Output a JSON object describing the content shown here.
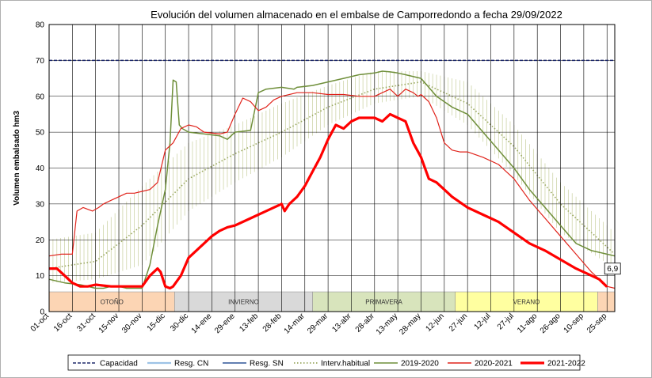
{
  "chart_data": {
    "type": "line",
    "title": "Evolución del volumen almacenado en el embalse de Camporredondo a fecha 29/09/2022",
    "xlabel": "",
    "ylabel": "Volumen embalsado hm3",
    "ylim": [
      0,
      80
    ],
    "yticks": [
      0,
      10,
      20,
      30,
      40,
      50,
      60,
      70,
      80
    ],
    "x_range_days": [
      0,
      365
    ],
    "x_ticks": [
      {
        "label": "01-oct",
        "day": 0
      },
      {
        "label": "16-oct",
        "day": 15
      },
      {
        "label": "31-oct",
        "day": 30
      },
      {
        "label": "15-nov",
        "day": 45
      },
      {
        "label": "30-nov",
        "day": 60
      },
      {
        "label": "15-dic",
        "day": 75
      },
      {
        "label": "30-dic",
        "day": 90
      },
      {
        "label": "14-ene",
        "day": 105
      },
      {
        "label": "29-ene",
        "day": 120
      },
      {
        "label": "13-feb",
        "day": 135
      },
      {
        "label": "28-feb",
        "day": 150
      },
      {
        "label": "14-mar",
        "day": 165
      },
      {
        "label": "29-mar",
        "day": 180
      },
      {
        "label": "13-abr",
        "day": 195
      },
      {
        "label": "28-abr",
        "day": 210
      },
      {
        "label": "13-may",
        "day": 225
      },
      {
        "label": "28-may",
        "day": 240
      },
      {
        "label": "12-jun",
        "day": 255
      },
      {
        "label": "27-jun",
        "day": 270
      },
      {
        "label": "12-jul",
        "day": 285
      },
      {
        "label": "27-jul",
        "day": 300
      },
      {
        "label": "11-ago",
        "day": 315
      },
      {
        "label": "26-ago",
        "day": 330
      },
      {
        "label": "10-sep",
        "day": 345
      },
      {
        "label": "25-sep",
        "day": 360
      }
    ],
    "grid": true,
    "legend_position": "bottom",
    "seasons": [
      {
        "label": "OTOÑO",
        "start": 0,
        "end": 81,
        "color": "#fcd5b4"
      },
      {
        "label": "INVIERNO",
        "start": 81,
        "end": 170,
        "color": "#d9d9d9"
      },
      {
        "label": "PRIMAVERA",
        "start": 170,
        "end": 262,
        "color": "#d8e4bc"
      },
      {
        "label": "VERANO",
        "start": 262,
        "end": 354,
        "color": "#ffffa0"
      },
      {
        "label": "",
        "start": 354,
        "end": 365,
        "color": "#fcd5b4"
      }
    ],
    "capacity": {
      "name": "Capacidad",
      "value": 70
    },
    "end_label": "6,9",
    "band": {
      "name": "Interv.habitual",
      "color": "#9aa860",
      "x": [
        0,
        30,
        60,
        90,
        120,
        150,
        180,
        210,
        240,
        270,
        300,
        330,
        365
      ],
      "lower": [
        8,
        9,
        13,
        28,
        36,
        43,
        52,
        58,
        60,
        52,
        38,
        22,
        12
      ],
      "upper": [
        20,
        22,
        35,
        47,
        52,
        58,
        63,
        67,
        67,
        64,
        52,
        36,
        22
      ],
      "mid": [
        12,
        14,
        24,
        37,
        44,
        50,
        57,
        62,
        64,
        58,
        46,
        30,
        16
      ]
    },
    "series": [
      {
        "name": "Resg. CN",
        "color": "#9dc3e6",
        "width": 2,
        "dash": "",
        "values": []
      },
      {
        "name": "Resg. SN",
        "color": "#2f5597",
        "width": 1.5,
        "dash": "",
        "values": []
      },
      {
        "name": "2019-2020",
        "color": "#6f8f3a",
        "width": 1.5,
        "dash": "",
        "x": [
          0,
          10,
          20,
          30,
          35,
          40,
          45,
          50,
          55,
          60,
          65,
          70,
          75,
          78,
          80,
          82,
          84,
          86,
          88,
          90,
          100,
          110,
          115,
          120,
          130,
          135,
          140,
          150,
          158,
          160,
          170,
          180,
          190,
          200,
          210,
          215,
          220,
          225,
          230,
          240,
          250,
          260,
          270,
          280,
          290,
          300,
          310,
          320,
          330,
          340,
          350,
          360,
          365
        ],
        "values": [
          9,
          8,
          7.5,
          6.5,
          6.5,
          7,
          7,
          6.5,
          6.5,
          6.5,
          13,
          24,
          34,
          47,
          64.5,
          64,
          52,
          51,
          50.5,
          50,
          49.5,
          49,
          48,
          50,
          50.5,
          61,
          62,
          62.5,
          62,
          62.5,
          63,
          64,
          65,
          66,
          66.5,
          67,
          66.8,
          66.5,
          66,
          65,
          60,
          57,
          55,
          50,
          45,
          40,
          34,
          29,
          24,
          19,
          17,
          16,
          15.5
        ]
      },
      {
        "name": "2020-2021",
        "color": "#e0231b",
        "width": 1.2,
        "dash": "",
        "x": [
          0,
          8,
          12,
          15,
          18,
          22,
          28,
          32,
          35,
          40,
          45,
          50,
          55,
          60,
          65,
          70,
          75,
          80,
          85,
          90,
          95,
          100,
          110,
          115,
          120,
          125,
          130,
          135,
          140,
          145,
          150,
          160,
          170,
          180,
          190,
          200,
          210,
          215,
          220,
          225,
          230,
          235,
          238,
          240,
          245,
          250,
          255,
          260,
          265,
          270,
          280,
          290,
          300,
          310,
          320,
          330,
          340,
          350,
          360,
          365
        ],
        "values": [
          15.5,
          16,
          16,
          16,
          28,
          29,
          28,
          29,
          30,
          31,
          32,
          33,
          33,
          33.5,
          34,
          36,
          45,
          47,
          51,
          52,
          51.5,
          50,
          49.5,
          50,
          55,
          59.5,
          58.5,
          56,
          57,
          59,
          60,
          61,
          61,
          60.5,
          60.5,
          60,
          60,
          61,
          62,
          60,
          62,
          61,
          60,
          60.5,
          58.5,
          54,
          47,
          45,
          44.5,
          44.5,
          43,
          41,
          37,
          31,
          26,
          21,
          16,
          11,
          7,
          6.5
        ]
      },
      {
        "name": "2021-2022",
        "color": "#ff0000",
        "width": 3.2,
        "dash": "",
        "x": [
          0,
          5,
          10,
          15,
          20,
          25,
          30,
          40,
          50,
          60,
          65,
          70,
          72,
          75,
          78,
          80,
          85,
          90,
          95,
          100,
          105,
          110,
          115,
          120,
          130,
          140,
          145,
          150,
          152,
          155,
          160,
          165,
          170,
          175,
          180,
          185,
          190,
          195,
          200,
          205,
          210,
          215,
          220,
          225,
          230,
          235,
          240,
          245,
          250,
          255,
          260,
          270,
          280,
          290,
          300,
          310,
          320,
          330,
          340,
          350,
          355,
          360
        ],
        "values": [
          12,
          12,
          10,
          8,
          7,
          7,
          7.5,
          7,
          7,
          7,
          10,
          12,
          11,
          7,
          6.5,
          7,
          10,
          15,
          17,
          19,
          21,
          22.5,
          23.5,
          24,
          26,
          28,
          29,
          30,
          28,
          30,
          32,
          35,
          39,
          43,
          48,
          52,
          51,
          53,
          54,
          54,
          54,
          53,
          55,
          54,
          53,
          47,
          43,
          37,
          36,
          34,
          32,
          29,
          27,
          25,
          22,
          19,
          17,
          14.5,
          12,
          10,
          9,
          6.9
        ]
      }
    ]
  },
  "legend": [
    {
      "key": "capacidad",
      "label": "Capacidad",
      "style": "dash",
      "color": "#1f2a6b"
    },
    {
      "key": "resg-cn",
      "label": "Resg. CN",
      "style": "line",
      "color": "#9dc3e6"
    },
    {
      "key": "resg-sn",
      "label": "Resg. SN",
      "style": "line",
      "color": "#2f5597"
    },
    {
      "key": "interv-habitual",
      "label": "Interv.habitual",
      "style": "dots",
      "color": "#9aa860"
    },
    {
      "key": "2019-2020",
      "label": "2019-2020",
      "style": "line",
      "color": "#6f8f3a"
    },
    {
      "key": "2020-2021",
      "label": "2020-2021",
      "style": "line",
      "color": "#e0231b"
    },
    {
      "key": "2021-2022",
      "label": "2021-2022",
      "style": "thick",
      "color": "#ff0000"
    }
  ]
}
